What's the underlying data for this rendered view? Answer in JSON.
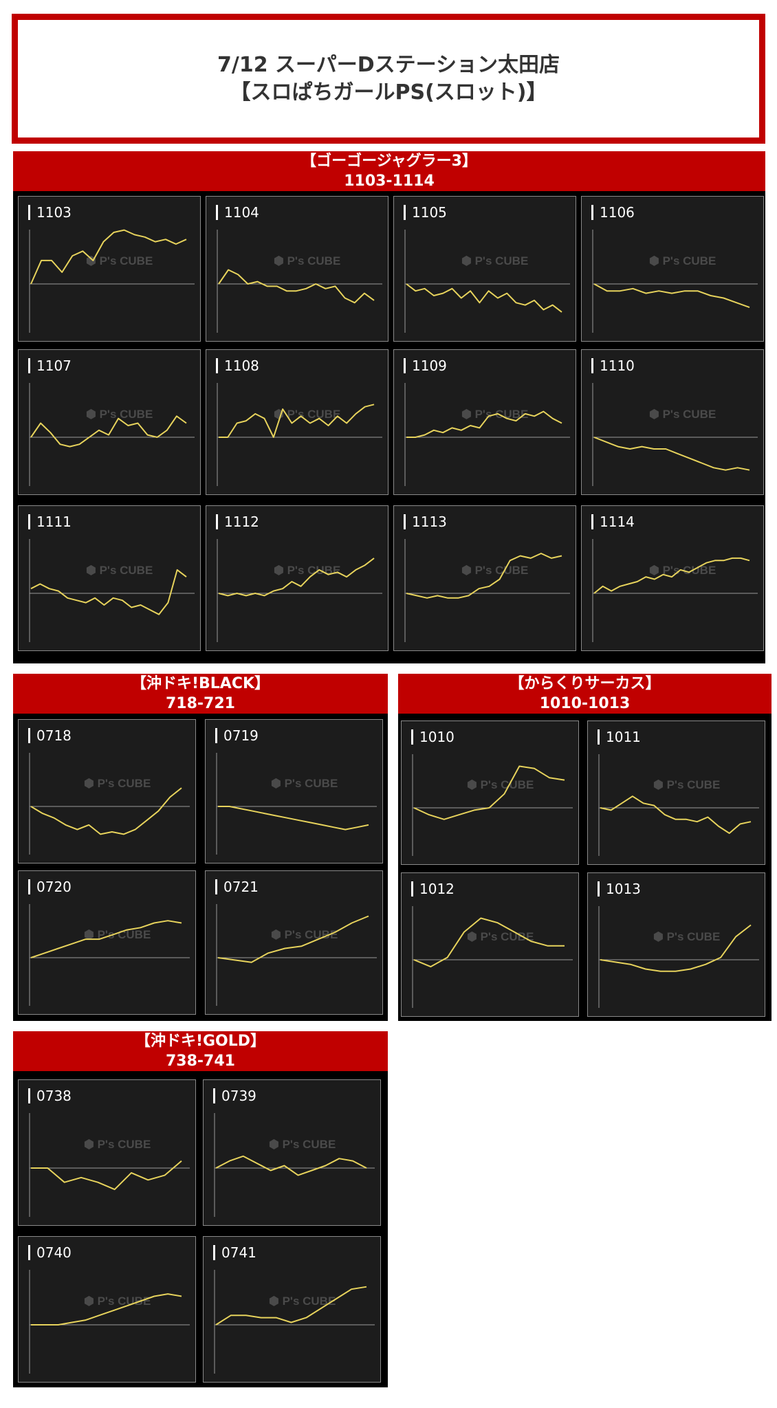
{
  "header": {
    "title_line1": "7/12 スーパーDステーション太田店",
    "title_line2": "【スロぱちガールPS(スロット)】"
  },
  "watermark": "P's CUBE",
  "colors": {
    "accent": "#c00000",
    "line": "#e7d35c",
    "panel_bg": "#1c1c1c",
    "baseline": "#9a9a9a"
  },
  "sections": [
    {
      "name": "【ゴーゴージャグラー3】",
      "range": "1103-1114"
    },
    {
      "name": "【沖ドキ!BLACK】",
      "range": "718-721"
    },
    {
      "name": "【からくりサーカス】",
      "range": "1010-1013"
    },
    {
      "name": "【沖ドキ!GOLD】",
      "range": "738-741"
    }
  ],
  "chart_data": [
    {
      "type": "line",
      "machine": "1103",
      "y": [
        0,
        10,
        10,
        5,
        12,
        14,
        10,
        18,
        22,
        23,
        21,
        20,
        18,
        19,
        17,
        19
      ]
    },
    {
      "type": "line",
      "machine": "1104",
      "y": [
        0,
        6,
        4,
        0,
        1,
        -1,
        -1,
        -3,
        -3,
        -2,
        0,
        -2,
        -1,
        -6,
        -8,
        -4,
        -7
      ]
    },
    {
      "type": "line",
      "machine": "1105",
      "y": [
        0,
        -3,
        -2,
        -5,
        -4,
        -2,
        -6,
        -3,
        -8,
        -3,
        -6,
        -4,
        -8,
        -9,
        -7,
        -11,
        -9,
        -12
      ]
    },
    {
      "type": "line",
      "machine": "1106",
      "y": [
        0,
        -3,
        -3,
        -2,
        -4,
        -3,
        -4,
        -3,
        -3,
        -5,
        -6,
        -8,
        -10
      ]
    },
    {
      "type": "line",
      "machine": "1107",
      "y": [
        0,
        6,
        2,
        -3,
        -4,
        -3,
        0,
        3,
        1,
        8,
        5,
        6,
        1,
        0,
        3,
        9,
        6
      ]
    },
    {
      "type": "line",
      "machine": "1108",
      "y": [
        0,
        0,
        6,
        7,
        10,
        8,
        0,
        12,
        6,
        9,
        6,
        8,
        5,
        9,
        6,
        10,
        13,
        14
      ]
    },
    {
      "type": "line",
      "machine": "1109",
      "y": [
        0,
        0,
        1,
        3,
        2,
        4,
        3,
        5,
        4,
        9,
        10,
        8,
        7,
        10,
        9,
        11,
        8,
        6
      ]
    },
    {
      "type": "line",
      "machine": "1110",
      "y": [
        0,
        -2,
        -4,
        -5,
        -4,
        -5,
        -5,
        -7,
        -9,
        -11,
        -13,
        -14,
        -13,
        -14
      ]
    },
    {
      "type": "line",
      "machine": "1111",
      "y": [
        2,
        4,
        2,
        1,
        -2,
        -3,
        -4,
        -2,
        -5,
        -2,
        -3,
        -6,
        -5,
        -7,
        -9,
        -4,
        10,
        7
      ]
    },
    {
      "type": "line",
      "machine": "1112",
      "y": [
        0,
        -1,
        0,
        -1,
        0,
        -1,
        1,
        2,
        5,
        3,
        7,
        10,
        8,
        9,
        7,
        10,
        12,
        15
      ]
    },
    {
      "type": "line",
      "machine": "1113",
      "y": [
        0,
        -1,
        -2,
        -1,
        -2,
        -2,
        -1,
        2,
        3,
        6,
        14,
        16,
        15,
        17,
        15,
        16
      ]
    },
    {
      "type": "line",
      "machine": "1114",
      "y": [
        0,
        3,
        1,
        3,
        4,
        5,
        7,
        6,
        8,
        7,
        10,
        9,
        11,
        13,
        14,
        14,
        15,
        15,
        14
      ]
    },
    {
      "type": "line",
      "machine": "0718",
      "y": [
        0,
        -3,
        -5,
        -8,
        -10,
        -8,
        -12,
        -11,
        -12,
        -10,
        -6,
        -2,
        4,
        8
      ]
    },
    {
      "type": "line",
      "machine": "0719",
      "y": [
        0,
        0,
        -1,
        -2,
        -3,
        -4,
        -5,
        -6,
        -7,
        -8,
        -9,
        -10,
        -9,
        -8
      ]
    },
    {
      "type": "line",
      "machine": "0720",
      "y": [
        0,
        2,
        4,
        6,
        8,
        8,
        10,
        12,
        13,
        15,
        16,
        15
      ]
    },
    {
      "type": "line",
      "machine": "0721",
      "y": [
        0,
        -1,
        -2,
        2,
        4,
        5,
        8,
        11,
        15,
        18
      ]
    },
    {
      "type": "line",
      "machine": "1010",
      "y": [
        0,
        -3,
        -5,
        -3,
        -1,
        0,
        6,
        18,
        17,
        13,
        12
      ]
    },
    {
      "type": "line",
      "machine": "1011",
      "y": [
        0,
        -1,
        2,
        5,
        2,
        1,
        -3,
        -5,
        -5,
        -6,
        -4,
        -8,
        -11,
        -7,
        -6
      ]
    },
    {
      "type": "line",
      "machine": "1012",
      "y": [
        0,
        -3,
        1,
        12,
        18,
        16,
        12,
        8,
        6,
        6
      ]
    },
    {
      "type": "line",
      "machine": "1013",
      "y": [
        0,
        -1,
        -2,
        -4,
        -5,
        -5,
        -4,
        -2,
        1,
        10,
        15
      ]
    },
    {
      "type": "line",
      "machine": "0738",
      "y": [
        0,
        0,
        -6,
        -4,
        -6,
        -9,
        -2,
        -5,
        -3,
        3
      ]
    },
    {
      "type": "line",
      "machine": "0739",
      "y": [
        0,
        3,
        5,
        2,
        -1,
        1,
        -3,
        -1,
        1,
        4,
        3,
        0
      ]
    },
    {
      "type": "line",
      "machine": "0740",
      "y": [
        0,
        0,
        0,
        1,
        2,
        4,
        6,
        8,
        10,
        12,
        13,
        12
      ]
    },
    {
      "type": "line",
      "machine": "0741",
      "y": [
        0,
        4,
        4,
        3,
        3,
        1,
        3,
        7,
        11,
        15,
        16
      ]
    }
  ]
}
